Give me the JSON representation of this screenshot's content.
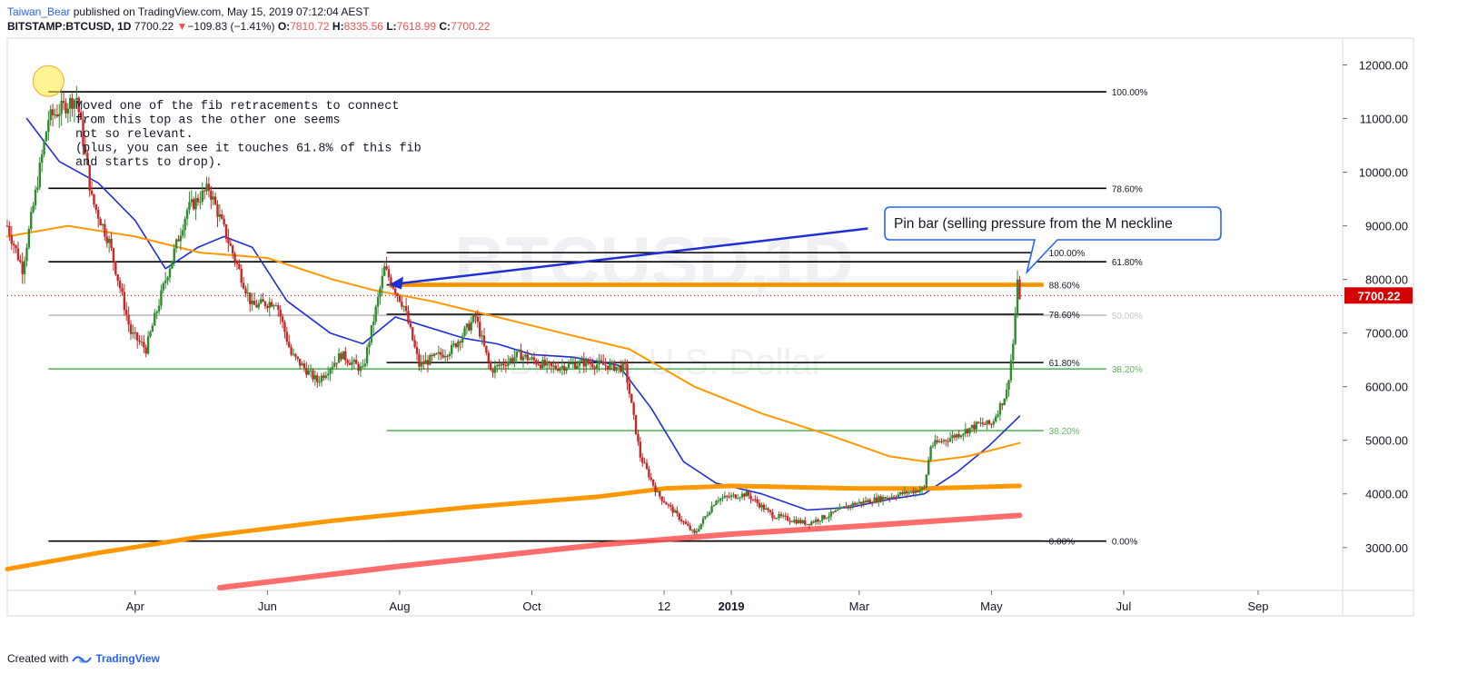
{
  "header": {
    "author": "Taiwan_Bear",
    "published": "published on TradingView.com, May 15, 2019 07:12:04 AEST",
    "symbol": "BITSTAMP:BTCUSD, 1D",
    "last": "7700.22",
    "arrow": "▼",
    "change": "−109.83 (−1.41%)",
    "o_label": "O:",
    "o": "7810.72",
    "h_label": "H:",
    "h": "8335.56",
    "l_label": "L:",
    "l": "7618.99",
    "c_label": "C:",
    "c": "7700.22"
  },
  "footer": {
    "created_with": "Created with",
    "brand": "TradingView"
  },
  "colors": {
    "up": "#2e8b2e",
    "down": "#c62828",
    "ma_fast": "#1f2fd6",
    "ma_slow": "#ff9800",
    "ma_200w": "#ff9800",
    "support": "#ff5252",
    "accent": "#2962ff",
    "price_tag": "#d50000"
  },
  "chart_data": {
    "type": "candlestick",
    "symbol": "BITSTAMP:BTCUSD",
    "interval": "1D",
    "watermark": "BTCUSD, 1D",
    "watermark_sub": "Bitcoin / U.S. Dollar",
    "y_range": [
      2200,
      12500
    ],
    "y_ticks": [
      3000,
      4000,
      5000,
      6000,
      7000,
      8000,
      9000,
      10000,
      11000,
      12000
    ],
    "y_tick_labels": [
      "3000.00",
      "4000.00",
      "5000.00",
      "6000.00",
      "7000.00",
      "8000.00",
      "9000.00",
      "10000.00",
      "11000.00",
      "12000.00"
    ],
    "x_range": [
      "2018-02-01",
      "2019-10-10"
    ],
    "x_ticks": [
      {
        "date": "2018-04-01",
        "label": "Apr"
      },
      {
        "date": "2018-06-01",
        "label": "Jun"
      },
      {
        "date": "2018-08-01",
        "label": "Aug"
      },
      {
        "date": "2018-10-01",
        "label": "Oct"
      },
      {
        "date": "2018-12-01",
        "label": "12"
      },
      {
        "date": "2019-01-01",
        "label": "2019",
        "bold": true
      },
      {
        "date": "2019-03-01",
        "label": "Mar"
      },
      {
        "date": "2019-05-01",
        "label": "May"
      },
      {
        "date": "2019-07-01",
        "label": "Jul"
      },
      {
        "date": "2019-09-01",
        "label": "Sep"
      }
    ],
    "last_price": 7700.22,
    "last_price_label": "7700.22",
    "price_path": [
      [
        "2018-02-01",
        9000
      ],
      [
        "2018-02-08",
        8200
      ],
      [
        "2018-02-20",
        11000
      ],
      [
        "2018-03-05",
        11400
      ],
      [
        "2018-03-12",
        9500
      ],
      [
        "2018-03-20",
        8700
      ],
      [
        "2018-03-30",
        7000
      ],
      [
        "2018-04-06",
        6700
      ],
      [
        "2018-04-15",
        8000
      ],
      [
        "2018-04-25",
        9300
      ],
      [
        "2018-05-05",
        9700
      ],
      [
        "2018-05-15",
        8600
      ],
      [
        "2018-05-25",
        7500
      ],
      [
        "2018-06-05",
        7600
      ],
      [
        "2018-06-12",
        6600
      ],
      [
        "2018-06-24",
        6100
      ],
      [
        "2018-07-05",
        6600
      ],
      [
        "2018-07-15",
        6300
      ],
      [
        "2018-07-25",
        8200
      ],
      [
        "2018-08-03",
        7500
      ],
      [
        "2018-08-10",
        6400
      ],
      [
        "2018-08-25",
        6700
      ],
      [
        "2018-09-05",
        7300
      ],
      [
        "2018-09-12",
        6300
      ],
      [
        "2018-09-25",
        6600
      ],
      [
        "2018-10-10",
        6350
      ],
      [
        "2018-10-25",
        6450
      ],
      [
        "2018-11-13",
        6350
      ],
      [
        "2018-11-20",
        4700
      ],
      [
        "2018-11-28",
        4000
      ],
      [
        "2018-12-07",
        3600
      ],
      [
        "2018-12-15",
        3250
      ],
      [
        "2018-12-25",
        3900
      ],
      [
        "2019-01-08",
        4000
      ],
      [
        "2019-01-20",
        3600
      ],
      [
        "2019-02-05",
        3450
      ],
      [
        "2019-02-15",
        3600
      ],
      [
        "2019-02-25",
        3800
      ],
      [
        "2019-03-15",
        3950
      ],
      [
        "2019-03-31",
        4100
      ],
      [
        "2019-04-03",
        4900
      ],
      [
        "2019-04-15",
        5100
      ],
      [
        "2019-04-25",
        5300
      ],
      [
        "2019-05-01",
        5300
      ],
      [
        "2019-05-08",
        5900
      ],
      [
        "2019-05-11",
        6800
      ],
      [
        "2019-05-13",
        7900
      ],
      [
        "2019-05-14",
        7700
      ]
    ],
    "moving_averages": [
      {
        "id": "fast",
        "color": "#1f2fd6",
        "width": 1.6,
        "points": [
          [
            "2018-02-10",
            11000
          ],
          [
            "2018-02-25",
            10200
          ],
          [
            "2018-03-15",
            9800
          ],
          [
            "2018-04-01",
            9100
          ],
          [
            "2018-04-15",
            8200
          ],
          [
            "2018-04-30",
            8600
          ],
          [
            "2018-05-12",
            8800
          ],
          [
            "2018-05-25",
            8600
          ],
          [
            "2018-06-10",
            7600
          ],
          [
            "2018-06-30",
            7000
          ],
          [
            "2018-07-15",
            6800
          ],
          [
            "2018-07-30",
            7300
          ],
          [
            "2018-08-15",
            7100
          ],
          [
            "2018-08-31",
            6900
          ],
          [
            "2018-09-15",
            6800
          ],
          [
            "2018-10-01",
            6600
          ],
          [
            "2018-10-20",
            6550
          ],
          [
            "2018-11-10",
            6400
          ],
          [
            "2018-11-25",
            5600
          ],
          [
            "2018-12-10",
            4600
          ],
          [
            "2018-12-25",
            4200
          ],
          [
            "2019-01-15",
            4000
          ],
          [
            "2019-02-05",
            3700
          ],
          [
            "2019-02-25",
            3750
          ],
          [
            "2019-03-15",
            3900
          ],
          [
            "2019-03-31",
            4000
          ],
          [
            "2019-04-15",
            4400
          ],
          [
            "2019-04-30",
            4900
          ],
          [
            "2019-05-14",
            5450
          ]
        ]
      },
      {
        "id": "slow",
        "color": "#ff9800",
        "width": 2,
        "points": [
          [
            "2018-02-01",
            8800
          ],
          [
            "2018-03-01",
            9000
          ],
          [
            "2018-04-01",
            8800
          ],
          [
            "2018-05-01",
            8500
          ],
          [
            "2018-06-01",
            8400
          ],
          [
            "2018-07-01",
            8000
          ],
          [
            "2018-07-20",
            7800
          ],
          [
            "2018-08-15",
            7600
          ],
          [
            "2018-09-15",
            7300
          ],
          [
            "2018-10-15",
            7000
          ],
          [
            "2018-11-15",
            6700
          ],
          [
            "2018-12-15",
            6000
          ],
          [
            "2019-01-15",
            5500
          ],
          [
            "2019-02-15",
            5100
          ],
          [
            "2019-03-15",
            4700
          ],
          [
            "2019-04-01",
            4600
          ],
          [
            "2019-04-20",
            4700
          ],
          [
            "2019-05-14",
            4950
          ]
        ]
      },
      {
        "id": "ma-200w",
        "color": "#ff9800",
        "width": 5,
        "points": [
          [
            "2018-02-01",
            2600
          ],
          [
            "2018-03-15",
            2900
          ],
          [
            "2018-05-01",
            3200
          ],
          [
            "2018-07-01",
            3500
          ],
          [
            "2018-09-01",
            3750
          ],
          [
            "2018-11-01",
            3950
          ],
          [
            "2018-12-01",
            4100
          ],
          [
            "2019-01-01",
            4150
          ],
          [
            "2019-03-01",
            4100
          ],
          [
            "2019-04-01",
            4100
          ],
          [
            "2019-05-14",
            4150
          ]
        ]
      },
      {
        "id": "support-trend",
        "color": "#ff5252",
        "width": 6,
        "points": [
          [
            "2018-05-10",
            2250
          ],
          [
            "2018-08-01",
            2650
          ],
          [
            "2018-11-01",
            3050
          ],
          [
            "2019-01-01",
            3250
          ],
          [
            "2019-03-01",
            3400
          ],
          [
            "2019-05-14",
            3600
          ]
        ]
      }
    ],
    "fib_levels": [
      {
        "id": "big",
        "x1": "2018-02-20",
        "x2": "2019-06-23",
        "levels": [
          {
            "price": 11500,
            "label": "100.00%",
            "color": "#000000"
          },
          {
            "price": 9700,
            "label": "78.60%",
            "color": "#000000"
          },
          {
            "price": 8330,
            "label": "61.80%",
            "color": "#000000"
          },
          {
            "price": 7330,
            "label": "50.00%",
            "color": "#c8c8c8"
          },
          {
            "price": 6330,
            "label": "38.20%",
            "color": "#5cb85c"
          },
          {
            "price": 3120,
            "label": "0.00%",
            "color": "#000000"
          }
        ]
      },
      {
        "id": "small",
        "x1": "2018-07-26",
        "x2": "2019-05-25",
        "levels": [
          {
            "price": 8500,
            "label": "100.00%",
            "color": "#000000"
          },
          {
            "price": 7900,
            "label": "88.60%",
            "color": "#000000"
          },
          {
            "price": 7350,
            "label": "78.60%",
            "color": "#000000"
          },
          {
            "price": 6450,
            "label": "61.80%",
            "color": "#000000"
          },
          {
            "price": 5180,
            "label": "38.20%",
            "color": "#5cb85c"
          },
          {
            "price": 3120,
            "label": "0.00%",
            "color": "#000000"
          }
        ]
      }
    ],
    "orange_band": {
      "x1": "2018-07-27",
      "x2": "2019-05-25",
      "price": 7900
    },
    "arrow": {
      "from": [
        "2019-03-05",
        8950
      ],
      "to": [
        "2018-07-27",
        7900
      ]
    },
    "top_marker": {
      "date": "2018-02-20",
      "price": 11700
    },
    "annotations": [
      {
        "id": "note",
        "lines": [
          "Moved one of the fib retracements to connect",
          "from this top as the other one seems",
          "not so relevant.",
          "(plus, you can see it touches 61.8% of this fib",
          "and starts to drop)."
        ]
      },
      {
        "id": "callout",
        "text": "Pin bar (selling pressure from the M neckline",
        "target": [
          "2019-05-14",
          7900
        ]
      }
    ]
  }
}
